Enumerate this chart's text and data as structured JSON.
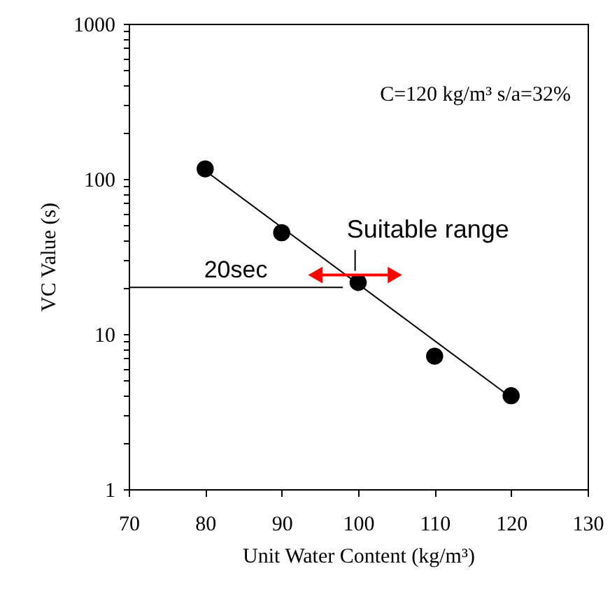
{
  "chart_data": {
    "type": "scatter",
    "xlabel": "Unit Water Content (kg/m³)",
    "ylabel": "VC Value (s)",
    "xlim": [
      70,
      130
    ],
    "xticks": [
      70,
      80,
      90,
      100,
      110,
      120,
      130
    ],
    "ylim": [
      1,
      1000
    ],
    "log": true,
    "yticks": [
      1,
      {
        "value": 2,
        "label": null
      },
      {
        "value": 3,
        "label": null
      },
      {
        "value": 4,
        "label": null
      },
      {
        "value": 5,
        "label": null
      },
      {
        "value": 6,
        "label": null
      },
      {
        "value": 7,
        "label": null
      },
      {
        "value": 8,
        "label": null
      },
      {
        "value": 9,
        "label": null
      },
      10,
      {
        "value": 20,
        "label": null
      },
      {
        "value": 30,
        "label": null
      },
      {
        "value": 40,
        "label": null
      },
      {
        "value": 50,
        "label": null
      },
      {
        "value": 60,
        "label": null
      },
      {
        "value": 70,
        "label": null
      },
      {
        "value": 80,
        "label": null
      },
      {
        "value": 90,
        "label": null
      },
      100,
      {
        "value": 200,
        "label": null
      },
      {
        "value": 300,
        "label": null
      },
      {
        "value": 400,
        "label": null
      },
      {
        "value": 500,
        "label": null
      },
      {
        "value": 600,
        "label": null
      },
      {
        "value": 700,
        "label": null
      },
      {
        "value": 800,
        "label": null
      },
      {
        "value": 900,
        "label": null
      },
      1000
    ],
    "grid": false,
    "marker": "circle",
    "x": [
      80,
      90,
      100,
      110,
      120
    ],
    "series": [
      {
        "color": "#000000",
        "values": [
          116,
          45,
          21.5,
          7.2,
          4.0
        ]
      },
      {
        "type": "line",
        "color": "#000000",
        "x": [
          80,
          120
        ],
        "values": [
          113,
          3.9
        ],
        "marker": "none"
      },
      {
        "type": "line",
        "name": "20sec",
        "color": "#000000",
        "x": [
          70,
          98
        ],
        "values": [
          20,
          20
        ],
        "marker": "none"
      },
      {
        "type": "line",
        "name": "Suitable range",
        "color": "#ff0000",
        "x": [
          94.4,
          104.8
        ],
        "values": [
          24,
          24
        ],
        "marker": "triangle"
      }
    ],
    "annotations": [
      "C=120 kg/m³  s/a=32%"
    ]
  }
}
